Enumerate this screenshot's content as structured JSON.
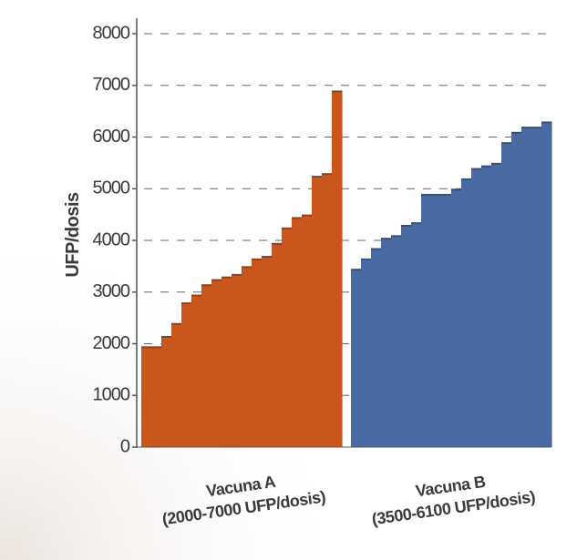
{
  "chart_data": {
    "type": "step-bar",
    "y_label": "UFP/dosis",
    "ylim": [
      0,
      8000
    ],
    "yticks": [
      0,
      1000,
      2000,
      3000,
      4000,
      5000,
      6000,
      7000,
      8000
    ],
    "grid": true,
    "series": [
      {
        "name": "Vacuna A",
        "range_label": "(2000-7000 UFP/dosis)",
        "color": "#c9561c",
        "values": [
          1950,
          1950,
          2150,
          2400,
          2800,
          2950,
          3150,
          3250,
          3300,
          3350,
          3500,
          3650,
          3700,
          3950,
          4250,
          4450,
          4500,
          5250,
          5300,
          6900
        ]
      },
      {
        "name": "Vacuna B",
        "range_label": "(3500-6100 UFP/dosis)",
        "color": "#4a6aa3",
        "values": [
          3450,
          3650,
          3850,
          4050,
          4100,
          4300,
          4350,
          4900,
          4900,
          4900,
          5000,
          5200,
          5400,
          5450,
          5500,
          5900,
          6100,
          6200,
          6200,
          6300
        ]
      }
    ]
  }
}
